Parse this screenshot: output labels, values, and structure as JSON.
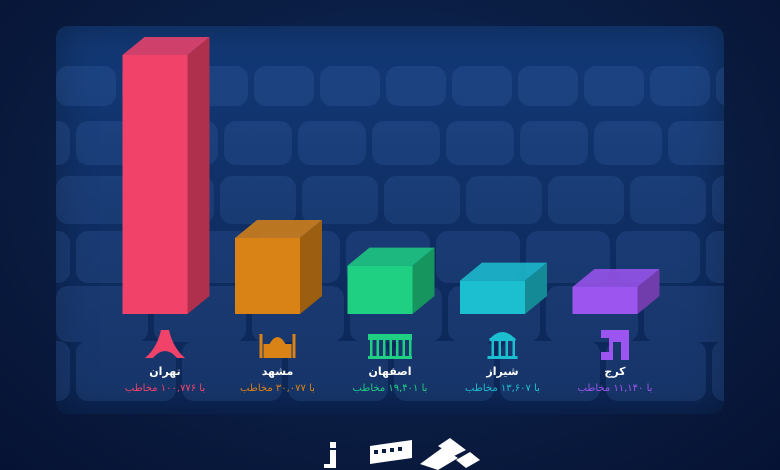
{
  "chart_data": {
    "type": "bar",
    "categories": [
      "تهران",
      "مشهد",
      "اصفهان",
      "شیراز",
      "کرج"
    ],
    "values": [
      100776,
      30077,
      19401,
      13607,
      11140
    ],
    "value_labels": [
      "با ۱۰۰,۷۷۶ مخاطب",
      "با ۳۰,۰۷۷ مخاطب",
      "با ۱۹,۴۰۱ مخاطب",
      "با ۱۳,۶۰۷ مخاطب",
      "با ۱۱,۱۴۰ مخاطب"
    ],
    "colors": [
      "#f1436a",
      "#d98216",
      "#1fcf82",
      "#1cbfd0",
      "#9d55f0"
    ],
    "city_icons": [
      "azadi-tower-icon",
      "imam-reza-shrine-icon",
      "chehel-sotoun-icon",
      "hafez-tomb-icon",
      "karaj-logo-icon"
    ],
    "title": "",
    "xlabel": "",
    "ylabel": "",
    "grid": false,
    "legend": "none"
  },
  "footer": {
    "logos": [
      "info-logo-icon",
      "cinema-ticket-logo-icon",
      "diamond-logo-icon"
    ]
  }
}
